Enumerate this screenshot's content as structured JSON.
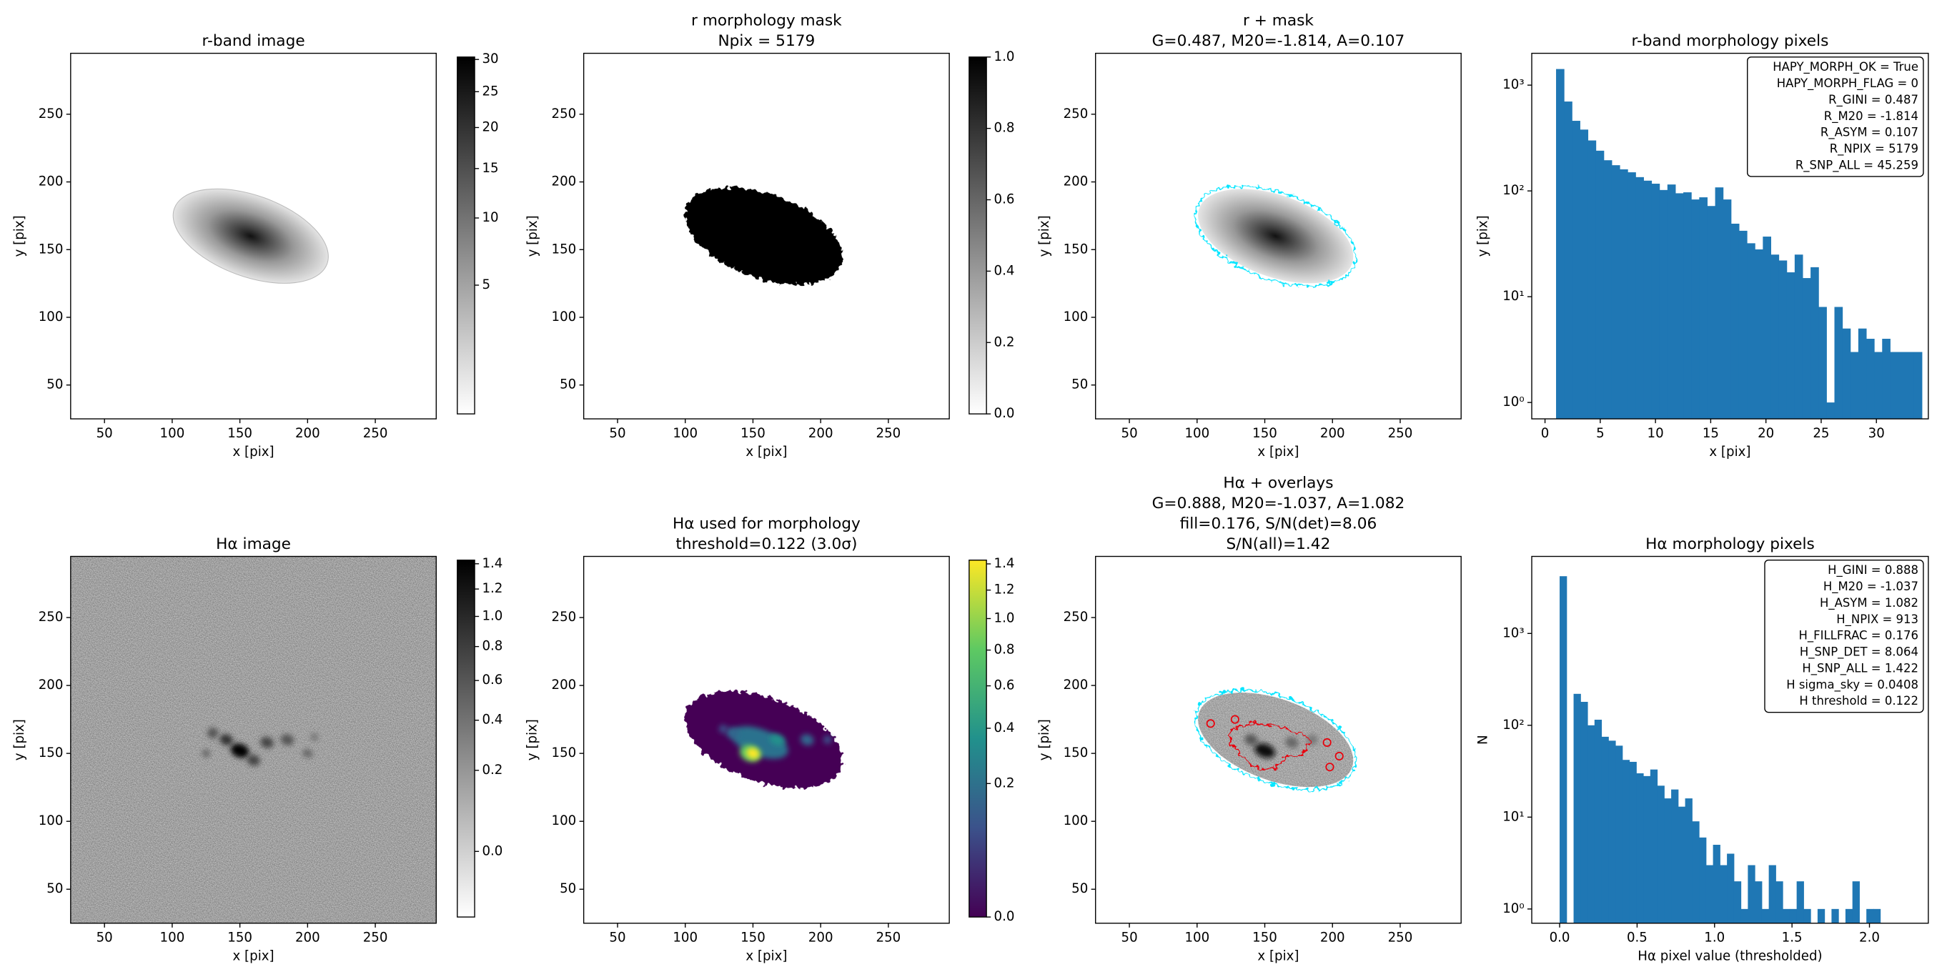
{
  "chart_data": [
    {
      "type": "image",
      "title": [
        "r-band image"
      ],
      "xlabel": "x [pix]",
      "ylabel": "y [pix]",
      "xlim": [
        25,
        295
      ],
      "ylim": [
        25,
        295
      ],
      "xticks": [
        50,
        100,
        150,
        200,
        250
      ],
      "yticks": [
        50,
        100,
        150,
        200,
        250
      ],
      "colorbar": {
        "cmap": "gray_r",
        "scale": "sqrt",
        "clim": [
          1.2,
          30.4
        ],
        "ticks": [
          5,
          10,
          15,
          20,
          25,
          30
        ]
      }
    },
    {
      "type": "image",
      "title": [
        "r morphology mask",
        "Npix = 5179"
      ],
      "xlabel": "x [pix]",
      "ylabel": "y [pix]",
      "xlim": [
        25,
        295
      ],
      "ylim": [
        25,
        295
      ],
      "xticks": [
        50,
        100,
        150,
        200,
        250
      ],
      "yticks": [
        50,
        100,
        150,
        200,
        250
      ],
      "colorbar": {
        "cmap": "gray_r",
        "scale": "linear",
        "clim": [
          0,
          1
        ],
        "ticks": [
          {
            "value": 0,
            "label": "0.0"
          },
          0.2,
          0.4,
          0.6,
          0.8,
          {
            "value": 1,
            "label": "1.0"
          }
        ]
      }
    },
    {
      "type": "image",
      "title": [
        "r + mask",
        "G=0.487, M20=-1.814, A=0.107"
      ],
      "xlabel": "x [pix]",
      "ylabel": "y [pix]",
      "xlim": [
        25,
        295
      ],
      "ylim": [
        25,
        295
      ],
      "xticks": [
        50,
        100,
        150,
        200,
        250
      ],
      "yticks": [
        50,
        100,
        150,
        200,
        250
      ]
    },
    {
      "type": "histogram",
      "title": [
        "r-band morphology pixels"
      ],
      "xlabel": "x [pix]",
      "ylabel": "y [pix]",
      "color": "#1f77b4",
      "yscale": "log",
      "bins": [
        1.0,
        1.72,
        2.44,
        3.16,
        3.88,
        4.6,
        5.32,
        6.04,
        6.76,
        7.48,
        8.2,
        8.92,
        9.64,
        10.36,
        11.08,
        11.8,
        12.52,
        13.24,
        13.96,
        14.68,
        15.4,
        16.12,
        16.84,
        17.56,
        18.28,
        19.0,
        19.72,
        20.44,
        21.16,
        21.88,
        22.6,
        23.32,
        24.04,
        24.76,
        25.48,
        26.2,
        26.92,
        27.64,
        28.36,
        29.08,
        29.8,
        30.52,
        31.24,
        31.96,
        32.68,
        33.4,
        34.12
      ],
      "values": [
        1420,
        700,
        460,
        380,
        300,
        240,
        195,
        175,
        160,
        150,
        135,
        125,
        117,
        102,
        115,
        95,
        97,
        83,
        87,
        72,
        108,
        83,
        49,
        42,
        32,
        28,
        37,
        25,
        22,
        17,
        25,
        15,
        19,
        8,
        1,
        8,
        5,
        3,
        5,
        4,
        3,
        4,
        3,
        3,
        3,
        3
      ],
      "xlim": [
        -1.2,
        34.7
      ],
      "ylim": [
        0.7,
        2000
      ],
      "xticks": [
        0,
        5,
        10,
        15,
        20,
        25,
        30
      ],
      "yticks": [
        {
          "value": 1,
          "label": "10⁰"
        },
        {
          "value": 10,
          "label": "10¹"
        },
        {
          "value": 100,
          "label": "10²"
        },
        {
          "value": 1000,
          "label": "10³"
        }
      ],
      "annotations": [
        "HAPY_MORPH_OK = True",
        "HAPY_MORPH_FLAG = 0",
        "R_GINI = 0.487",
        "R_M20 = -1.814",
        "R_ASYM = 0.107",
        "R_NPIX = 5179",
        "R_SNP_ALL = 45.259"
      ]
    },
    {
      "type": "image",
      "title": [
        "Hα image"
      ],
      "xlabel": "x [pix]",
      "ylabel": "y [pix]",
      "xlim": [
        25,
        295
      ],
      "ylim": [
        25,
        295
      ],
      "xticks": [
        50,
        100,
        150,
        200,
        250
      ],
      "yticks": [
        50,
        100,
        150,
        200,
        250
      ],
      "colorbar": {
        "cmap": "gray_r",
        "scale": "sqrt",
        "clim": [
          -0.05,
          1.43
        ],
        "ticks": [
          {
            "value": 0,
            "label": "0.0"
          },
          0.2,
          0.4,
          0.6,
          0.8,
          {
            "value": 1,
            "label": "1.0"
          },
          1.2,
          1.4
        ]
      }
    },
    {
      "type": "image",
      "title": [
        "Hα used for morphology",
        "threshold=0.122 (3.0σ)"
      ],
      "xlabel": "x [pix]",
      "ylabel": "y [pix]",
      "xlim": [
        25,
        295
      ],
      "ylim": [
        25,
        295
      ],
      "xticks": [
        50,
        100,
        150,
        200,
        250
      ],
      "yticks": [
        50,
        100,
        150,
        200,
        250
      ],
      "colorbar": {
        "cmap": "viridis",
        "scale": "sqrt",
        "clim": [
          0,
          1.43
        ],
        "ticks": [
          {
            "value": 0,
            "label": "0.0"
          },
          0.2,
          0.4,
          0.6,
          0.8,
          {
            "value": 1,
            "label": "1.0"
          },
          1.2,
          1.4
        ]
      }
    },
    {
      "type": "image",
      "title": [
        "Hα + overlays",
        "G=0.888, M20=-1.037, A=1.082",
        "fill=0.176, S/N(det)=8.06",
        "S/N(all)=1.42"
      ],
      "xlabel": "x [pix]",
      "ylabel": "y [pix]",
      "xlim": [
        25,
        295
      ],
      "ylim": [
        25,
        295
      ],
      "xticks": [
        50,
        100,
        150,
        200,
        250
      ],
      "yticks": [
        50,
        100,
        150,
        200,
        250
      ]
    },
    {
      "type": "histogram",
      "title": [
        "Hα morphology pixels"
      ],
      "xlabel": "Hα pixel value (thresholded)",
      "ylabel": "N",
      "color": "#1f77b4",
      "yscale": "log",
      "bins": [
        0,
        0.045,
        0.09,
        0.135,
        0.18,
        0.225,
        0.27,
        0.315,
        0.36,
        0.405,
        0.45,
        0.495,
        0.54,
        0.585,
        0.63,
        0.675,
        0.72,
        0.765,
        0.81,
        0.855,
        0.9,
        0.945,
        0.99,
        1.035,
        1.08,
        1.125,
        1.17,
        1.215,
        1.26,
        1.305,
        1.35,
        1.395,
        1.44,
        1.485,
        1.53,
        1.575,
        1.62,
        1.665,
        1.71,
        1.755,
        1.8,
        1.845,
        1.89,
        1.935,
        1.98,
        2.025,
        2.07
      ],
      "values": [
        4200,
        0,
        220,
        180,
        100,
        115,
        75,
        68,
        60,
        42,
        40,
        30,
        28,
        33,
        22,
        16,
        20,
        13,
        16,
        9,
        6,
        3,
        5,
        3,
        4,
        2,
        1,
        3,
        2,
        1,
        3,
        2,
        1,
        1,
        2,
        1,
        0,
        1,
        0,
        1,
        0,
        1,
        2,
        0,
        1,
        1
      ],
      "xlim": [
        -0.18,
        2.38
      ],
      "ylim": [
        0.7,
        6900
      ],
      "xticks": [
        {
          "value": 0,
          "label": "0.0"
        },
        0.5,
        {
          "value": 1,
          "label": "1.0"
        },
        1.5,
        {
          "value": 2,
          "label": "2.0"
        }
      ],
      "yticks": [
        {
          "value": 1,
          "label": "10⁰"
        },
        {
          "value": 10,
          "label": "10¹"
        },
        {
          "value": 100,
          "label": "10²"
        },
        {
          "value": 1000,
          "label": "10³"
        }
      ],
      "annotations": [
        "H_GINI = 0.888",
        "H_M20 = -1.037",
        "H_ASYM = 1.082",
        "H_NPIX = 913",
        "H_FILLFRAC = 0.176",
        "H_SNP_DET = 8.064",
        "H_SNP_ALL = 1.422",
        "H sigma_sky = 0.0408",
        "H threshold = 0.122"
      ]
    }
  ]
}
